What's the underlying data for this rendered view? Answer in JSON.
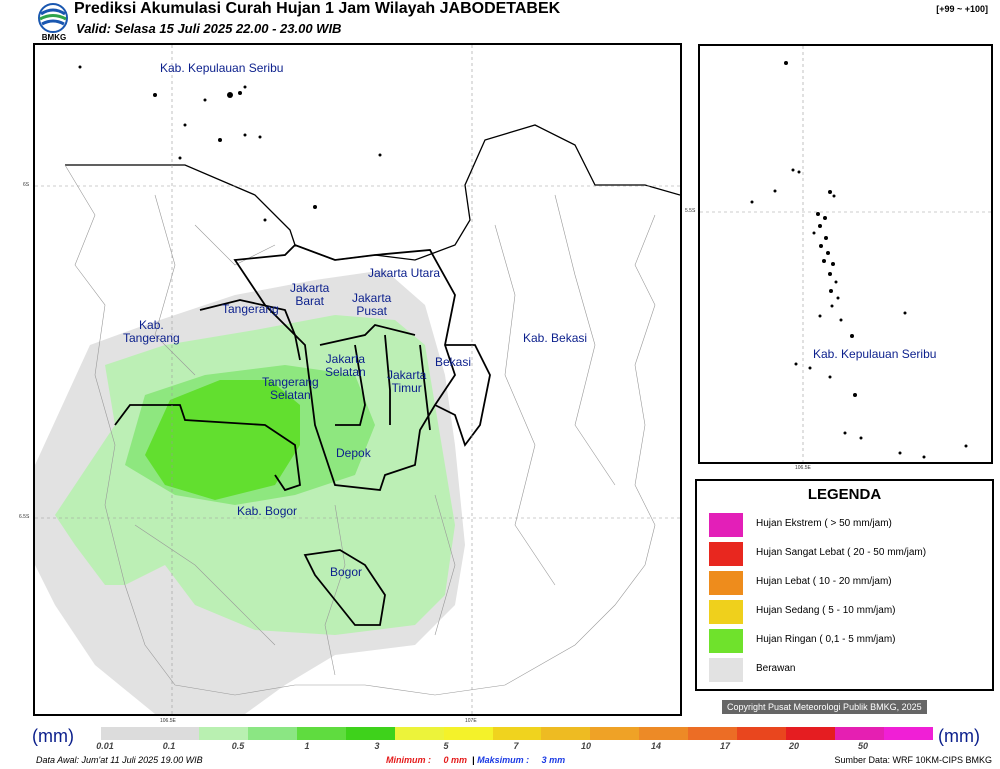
{
  "header": {
    "title": "Prediksi Akumulasi Curah Hujan 1 Jam Wilayah JABODETABEK",
    "subtitle": "Valid: Selasa 15 Juli 2025 22.00 - 23.00 WIB",
    "version": "[+99 ~ +100]",
    "logo_text": "BMKG"
  },
  "main_map": {
    "labels": [
      {
        "name": "kepulauan-seribu",
        "text": "Kab. Kepulauan Seribu"
      },
      {
        "name": "jakarta-utara",
        "text": "Jakarta Utara"
      },
      {
        "name": "jakarta-barat",
        "text": "Jakarta\nBarat"
      },
      {
        "name": "jakarta-pusat",
        "text": "Jakarta\nPusat"
      },
      {
        "name": "tangerang",
        "text": "Tangerang"
      },
      {
        "name": "kab-tangerang",
        "text": "Kab.\nTangerang"
      },
      {
        "name": "jakarta-selatan",
        "text": "Jakarta\nSelatan"
      },
      {
        "name": "tangerang-selatan",
        "text": "Tangerang\nSelatan"
      },
      {
        "name": "jakarta-timur",
        "text": "Jakarta\nTimur"
      },
      {
        "name": "bekasi",
        "text": "Bekasi"
      },
      {
        "name": "kab-bekasi",
        "text": "Kab. Bekasi"
      },
      {
        "name": "depok",
        "text": "Depok"
      },
      {
        "name": "kab-bogor",
        "text": "Kab. Bogor"
      },
      {
        "name": "bogor",
        "text": "Bogor"
      }
    ],
    "coords": {
      "lat1": "6S",
      "lat2": "6.5S",
      "lon1": "106.5E",
      "lon2": "107E"
    }
  },
  "inset_map": {
    "label": "Kab. Kepulauan Seribu",
    "coords": {
      "lat": "5.5S",
      "lon": "106.5E"
    }
  },
  "legend": {
    "title": "LEGENDA",
    "items": [
      {
        "label": "Hujan Ekstrem ( > 50 mm/jam)",
        "color": "#e31fb8"
      },
      {
        "label": "Hujan Sangat Lebat ( 20 - 50 mm/jam)",
        "color": "#e8271f"
      },
      {
        "label": "Hujan Lebat ( 10 - 20 mm/jam)",
        "color": "#ee8c1c"
      },
      {
        "label": "Hujan Sedang ( 5 - 10 mm/jam)",
        "color": "#efd01c"
      },
      {
        "label": "Hujan Ringan ( 0,1 - 5 mm/jam)",
        "color": "#6fe22c"
      },
      {
        "label": "Berawan",
        "color": "#e2e2e2"
      }
    ]
  },
  "copyright": "Copyright Pusat Meteorologi Publik BMKG, 2025",
  "scale": {
    "unit": "(mm)",
    "colors": [
      "#dcdcdc",
      "#dcdcdc",
      "#b9f0b1",
      "#8be683",
      "#5fdc3f",
      "#3ed21b",
      "#ecf33a",
      "#f4f22a",
      "#f0d31e",
      "#eebb22",
      "#efa226",
      "#ed8a26",
      "#ec6d25",
      "#e9461e",
      "#e51d21",
      "#e51fb2",
      "#f01fd6"
    ],
    "ticks": [
      "0.01",
      "0.1",
      "0.5",
      "1",
      "3",
      "5",
      "7",
      "10",
      "14",
      "17",
      "20",
      "50"
    ]
  },
  "footer": {
    "data_awal": "Data Awal: Jum'at 11 Juli 2025 19.00 WIB",
    "minimum_label": "Minimum :",
    "minimum_value": "0 mm",
    "separator": "|",
    "maximum_label": "Maksimum :",
    "maximum_value": "3 mm",
    "source": "Sumber Data: WRF 10KM-CIPS BMKG"
  }
}
